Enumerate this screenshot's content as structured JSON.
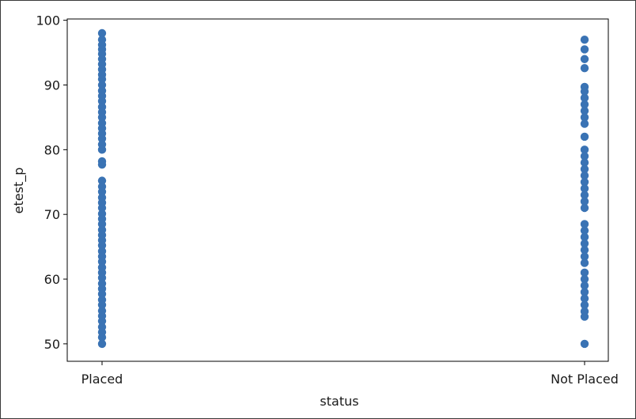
{
  "chart_data": {
    "type": "scatter",
    "title": "",
    "xlabel": "status",
    "ylabel": "etest_p",
    "categories": [
      "Placed",
      "Not Placed"
    ],
    "ylim": [
      47.3,
      100.2
    ],
    "yticks": [
      50,
      60,
      70,
      80,
      90,
      100
    ],
    "grid": false,
    "color": "#3a73b4",
    "series": [
      {
        "values": [
          [
            0,
            98.0
          ],
          [
            0,
            97.0
          ],
          [
            0,
            96.2
          ],
          [
            0,
            95.5
          ],
          [
            0,
            94.8
          ],
          [
            0,
            94.0
          ],
          [
            0,
            93.2
          ],
          [
            0,
            92.4
          ],
          [
            0,
            91.6
          ],
          [
            0,
            90.9
          ],
          [
            0,
            90.0
          ],
          [
            0,
            89.1
          ],
          [
            0,
            88.3
          ],
          [
            0,
            87.5
          ],
          [
            0,
            86.6
          ],
          [
            0,
            85.8
          ],
          [
            0,
            85.0
          ],
          [
            0,
            84.1
          ],
          [
            0,
            83.3
          ],
          [
            0,
            82.5
          ],
          [
            0,
            81.7
          ],
          [
            0,
            80.8
          ],
          [
            0,
            80.0
          ],
          [
            0,
            78.2
          ],
          [
            0,
            77.7
          ],
          [
            0,
            75.2
          ],
          [
            0,
            74.3
          ],
          [
            0,
            73.5
          ],
          [
            0,
            72.6
          ],
          [
            0,
            71.8
          ],
          [
            0,
            71.0
          ],
          [
            0,
            70.1
          ],
          [
            0,
            69.3
          ],
          [
            0,
            68.5
          ],
          [
            0,
            67.6
          ],
          [
            0,
            66.8
          ],
          [
            0,
            66.0
          ],
          [
            0,
            65.2
          ],
          [
            0,
            64.3
          ],
          [
            0,
            63.5
          ],
          [
            0,
            62.7
          ],
          [
            0,
            61.8
          ],
          [
            0,
            61.0
          ],
          [
            0,
            60.2
          ],
          [
            0,
            59.3
          ],
          [
            0,
            58.5
          ],
          [
            0,
            57.7
          ],
          [
            0,
            56.8
          ],
          [
            0,
            56.0
          ],
          [
            0,
            55.1
          ],
          [
            0,
            54.3
          ],
          [
            0,
            53.5
          ],
          [
            0,
            52.6
          ],
          [
            0,
            51.8
          ],
          [
            0,
            51.0
          ],
          [
            0,
            50.0
          ],
          [
            1,
            97.0
          ],
          [
            1,
            95.5
          ],
          [
            1,
            94.0
          ],
          [
            1,
            92.6
          ],
          [
            1,
            89.7
          ],
          [
            1,
            89.0
          ],
          [
            1,
            88.0
          ],
          [
            1,
            87.0
          ],
          [
            1,
            86.0
          ],
          [
            1,
            85.0
          ],
          [
            1,
            84.0
          ],
          [
            1,
            82.0
          ],
          [
            1,
            80.0
          ],
          [
            1,
            79.0
          ],
          [
            1,
            78.0
          ],
          [
            1,
            77.0
          ],
          [
            1,
            76.0
          ],
          [
            1,
            75.0
          ],
          [
            1,
            74.0
          ],
          [
            1,
            73.0
          ],
          [
            1,
            72.0
          ],
          [
            1,
            71.0
          ],
          [
            1,
            68.5
          ],
          [
            1,
            67.5
          ],
          [
            1,
            66.5
          ],
          [
            1,
            65.5
          ],
          [
            1,
            64.5
          ],
          [
            1,
            63.5
          ],
          [
            1,
            62.5
          ],
          [
            1,
            61.0
          ],
          [
            1,
            60.0
          ],
          [
            1,
            59.0
          ],
          [
            1,
            58.0
          ],
          [
            1,
            57.0
          ],
          [
            1,
            56.0
          ],
          [
            1,
            55.0
          ],
          [
            1,
            54.2
          ],
          [
            1,
            50.0
          ]
        ]
      }
    ]
  }
}
